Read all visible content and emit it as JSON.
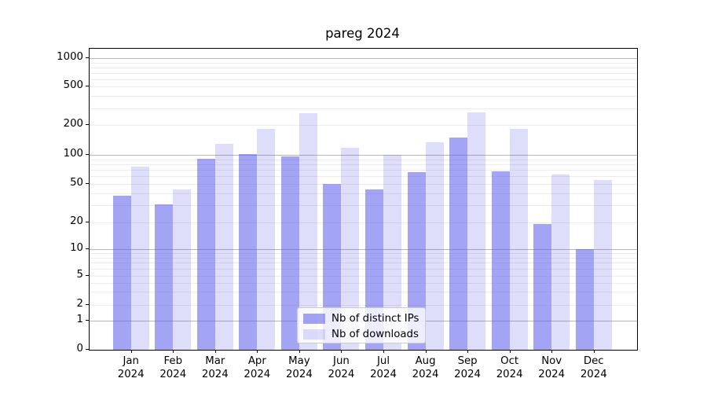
{
  "chart_data": {
    "type": "bar",
    "title": "pareg 2024",
    "xlabel": "",
    "ylabel": "",
    "categories": [
      "Jan 2024",
      "Feb 2024",
      "Mar 2024",
      "Apr 2024",
      "May 2024",
      "Jun 2024",
      "Jul 2024",
      "Aug 2024",
      "Sep 2024",
      "Oct 2024",
      "Nov 2024",
      "Dec 2024"
    ],
    "series": [
      {
        "name": "Nb of distinct IPs",
        "color": "rgba(90,90,235,0.55)",
        "values": [
          38,
          31,
          91,
          102,
          97,
          50,
          44,
          67,
          150,
          68,
          19,
          10
        ]
      },
      {
        "name": "Nb of downloads",
        "color": "rgba(90,90,235,0.2)",
        "values": [
          75,
          44,
          129,
          183,
          265,
          118,
          100,
          135,
          272,
          185,
          63,
          55
        ]
      }
    ],
    "y_axis": {
      "scale": "symlog",
      "ticks": [
        0,
        1,
        2,
        5,
        10,
        20,
        50,
        100,
        200,
        500,
        1000
      ],
      "range": [
        0,
        1270
      ],
      "grid": "on, minor light gray + major gray at powers of 10"
    },
    "legend": {
      "position": "lower center",
      "entries": [
        "Nb of distinct IPs",
        "Nb of downloads"
      ]
    }
  }
}
